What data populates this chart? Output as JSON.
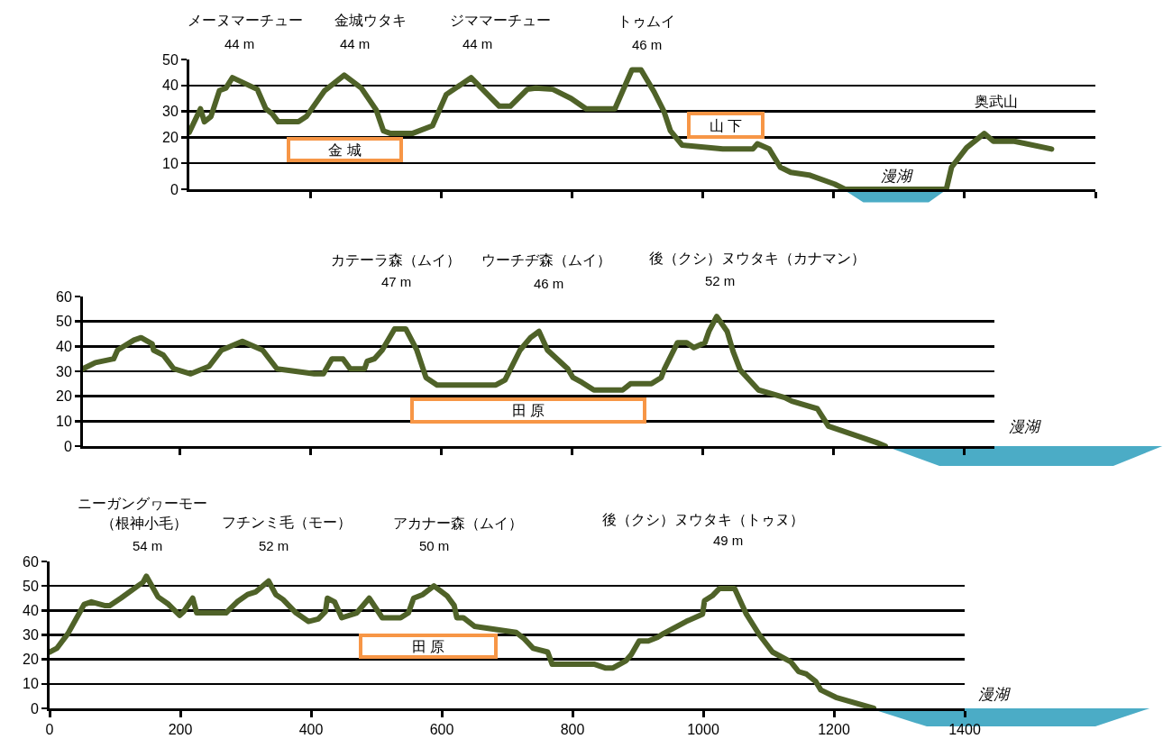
{
  "chart_data": [
    {
      "type": "line",
      "xlim": [
        214,
        1600
      ],
      "xticks": [
        400,
        600,
        800,
        1000,
        1200,
        1400,
        1600
      ],
      "ylim": [
        0,
        50
      ],
      "yticks": [
        0,
        10,
        20,
        30,
        40,
        50
      ],
      "grid": "y",
      "tick_labels": "y",
      "series": [
        {
          "color": "#4f6228",
          "x": [
            214,
            231,
            237,
            247,
            260,
            270,
            280,
            318,
            331,
            341,
            350,
            381,
            393,
            421,
            451,
            477,
            500,
            511,
            522,
            555,
            586,
            607,
            645,
            688,
            705,
            731,
            744,
            770,
            798,
            821,
            865,
            891,
            905,
            925,
            940,
            950,
            968,
            1030,
            1076,
            1083,
            1101,
            1118,
            1134,
            1162,
            1201,
            1217,
            1372,
            1380,
            1403,
            1430,
            1444,
            1476,
            1533
          ],
          "values": [
            22,
            31,
            26,
            28,
            38,
            39,
            43,
            38.5,
            31,
            29,
            26,
            26,
            28,
            38,
            44,
            39,
            30.5,
            22.5,
            21.5,
            21.5,
            24.5,
            36.5,
            43,
            32,
            32,
            38.5,
            39,
            38.5,
            35,
            31,
            31,
            46,
            46,
            37.5,
            30,
            22.5,
            17,
            15.5,
            15.5,
            17.5,
            15.5,
            8.5,
            6.5,
            5.5,
            2,
            0,
            0,
            8.5,
            16,
            21.5,
            18.5,
            18.5,
            15.5
          ]
        }
      ],
      "annotations": [
        "メーヌマーチュー",
        "44 m",
        "金城ウタキ",
        "44 m",
        "ジママーチュー",
        "44 m",
        "トゥムイ",
        "46 m",
        "奥武山",
        "漫湖",
        "金 城",
        "山 下"
      ]
    },
    {
      "type": "line",
      "xlim": [
        51,
        1446
      ],
      "xticks": [
        200,
        400,
        600,
        800,
        1000,
        1200,
        1400
      ],
      "ylim": [
        0,
        60
      ],
      "yticks": [
        0,
        10,
        20,
        30,
        40,
        50,
        60
      ],
      "grid": "y",
      "tick_labels": "y",
      "series": [
        {
          "color": "#4f6228",
          "x": [
            51,
            70,
            98,
            104,
            129,
            140,
            157,
            159,
            174,
            190,
            216,
            244,
            263,
            295,
            326,
            348,
            405,
            419,
            432,
            449,
            460,
            482,
            486,
            497,
            509,
            528,
            545,
            562,
            576,
            593,
            683,
            697,
            720,
            736,
            749,
            762,
            793,
            801,
            815,
            833,
            877,
            889,
            921,
            936,
            941,
            961,
            975,
            986,
            1003,
            1009,
            1021,
            1037,
            1046,
            1057,
            1085,
            1125,
            1136,
            1175,
            1192,
            1265,
            1279
          ],
          "values": [
            31,
            33.5,
            35,
            38.5,
            42.5,
            43.5,
            41,
            38.5,
            36.5,
            31,
            29,
            32,
            38.5,
            42,
            38.5,
            31,
            29,
            29,
            35,
            35,
            31,
            31,
            34,
            35,
            38.5,
            47,
            47,
            38.5,
            27.5,
            24.5,
            24.5,
            26.5,
            38.5,
            43.5,
            46,
            38.5,
            31,
            27.5,
            25.5,
            22.5,
            22.5,
            25,
            25,
            27.5,
            31,
            41.5,
            41.5,
            39.5,
            41.5,
            46,
            52,
            46,
            38,
            30.5,
            22.5,
            19.5,
            18,
            15,
            8,
            1.5,
            0
          ]
        }
      ],
      "annotations": [
        "カテーラ森（ムイ）",
        "47 m",
        "ウーチヂ森（ムイ）",
        "46 m",
        "後（クシ）ヌウタキ（カナマン）",
        "52 m",
        "漫湖",
        "田 原"
      ]
    },
    {
      "type": "line",
      "xlim": [
        0,
        1400
      ],
      "xticks": [
        0,
        200,
        400,
        600,
        800,
        1000,
        1200,
        1400
      ],
      "ylim": [
        0,
        60
      ],
      "yticks": [
        0,
        10,
        20,
        30,
        40,
        50,
        60
      ],
      "grid": "y",
      "series": [
        {
          "color": "#4f6228",
          "x": [
            0,
            11,
            28,
            53,
            64,
            84,
            92,
            109,
            135,
            143,
            148,
            166,
            182,
            199,
            205,
            219,
            225,
            270,
            287,
            303,
            315,
            335,
            346,
            357,
            377,
            396,
            411,
            422,
            425,
            436,
            447,
            470,
            489,
            509,
            537,
            549,
            557,
            571,
            588,
            608,
            619,
            623,
            633,
            650,
            714,
            726,
            740,
            762,
            769,
            834,
            850,
            862,
            882,
            890,
            902,
            916,
            930,
            939,
            974,
            999,
            1002,
            1014,
            1025,
            1048,
            1066,
            1086,
            1106,
            1134,
            1146,
            1158,
            1172,
            1180,
            1203,
            1261
          ],
          "values": [
            23,
            24.5,
            30.5,
            42.5,
            43.5,
            42,
            42,
            45,
            50,
            51.5,
            54,
            45.5,
            42.5,
            38,
            39.5,
            45,
            39,
            39,
            43.5,
            46.5,
            47.5,
            52,
            46.5,
            44.5,
            39,
            35.5,
            36.5,
            39.5,
            45,
            43.5,
            37,
            39,
            45,
            37,
            37,
            39,
            45,
            46.5,
            50,
            46,
            42,
            37,
            37,
            33.5,
            31,
            28.5,
            24.5,
            23,
            18,
            18,
            16.5,
            16.5,
            19.5,
            22,
            27.5,
            27.5,
            29,
            30.5,
            35.5,
            38.5,
            44,
            46,
            49,
            49,
            38.5,
            30,
            23,
            19,
            15,
            14,
            11,
            7.5,
            4.5,
            0
          ]
        }
      ],
      "annotations": [
        "ニーガングヮーモー",
        "（根神小毛）",
        "54 m",
        "フチンミ毛（モー）",
        "52 m",
        "アカナー森（ムイ）",
        "50 m",
        "後（クシ）ヌウタキ（トゥヌ）",
        "49 m",
        "漫湖",
        "田 原"
      ]
    }
  ]
}
